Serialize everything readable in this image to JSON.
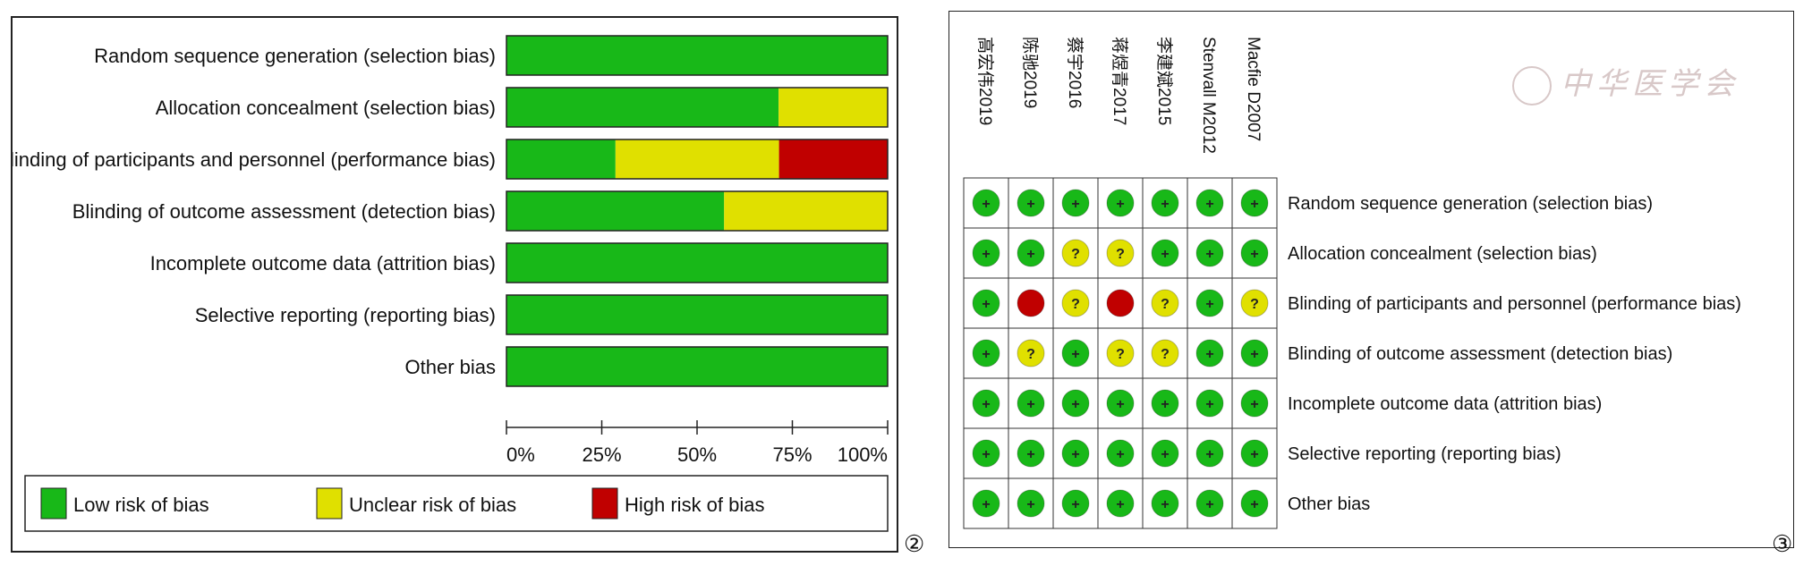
{
  "figure_labels": {
    "left": "②",
    "right": "③"
  },
  "watermark": "中华医学会",
  "colors": {
    "low": "#18b818",
    "unclear": "#e0e000",
    "high": "#c00000",
    "border": "#222222"
  },
  "chart_data": [
    {
      "type": "bar",
      "orientation": "horizontal-stacked-percent",
      "categories": [
        "Random sequence generation (selection bias)",
        "Allocation concealment (selection bias)",
        "Blinding of participants and personnel (performance bias)",
        "Blinding of outcome assessment (detection bias)",
        "Incomplete outcome data (attrition bias)",
        "Selective reporting (reporting bias)",
        "Other bias"
      ],
      "series": [
        {
          "name": "Low risk of bias",
          "values": [
            100,
            71.4,
            28.6,
            57.1,
            100,
            100,
            100
          ]
        },
        {
          "name": "Unclear risk of bias",
          "values": [
            0,
            28.6,
            42.9,
            42.9,
            0,
            0,
            0
          ]
        },
        {
          "name": "High risk of bias",
          "values": [
            0,
            0,
            28.6,
            0,
            0,
            0,
            0
          ]
        }
      ],
      "xlim": [
        0,
        100
      ],
      "xticks": [
        "0%",
        "25%",
        "50%",
        "75%",
        "100%"
      ],
      "legend": [
        "Low risk of bias",
        "Unclear risk of bias",
        "High risk of bias"
      ],
      "legend_position": "bottom"
    },
    {
      "type": "table",
      "studies": [
        "高宏伟2019",
        "陈驰2019",
        "蔡宇2016",
        "蒋煜青2017",
        "李建斌2015",
        "Stenvall M2012",
        "Macfie D2007"
      ],
      "domains": [
        "Random sequence generation (selection bias)",
        "Allocation concealment (selection bias)",
        "Blinding of participants and personnel (performance bias)",
        "Blinding of outcome assessment (detection bias)",
        "Incomplete outcome data (attrition bias)",
        "Selective reporting (reporting bias)",
        "Other bias"
      ],
      "symbols": {
        "low": "+",
        "unclear": "?",
        "high": ""
      },
      "grid": [
        [
          "low",
          "low",
          "low",
          "low",
          "low",
          "low",
          "low"
        ],
        [
          "low",
          "low",
          "unclear",
          "unclear",
          "low",
          "low",
          "low"
        ],
        [
          "low",
          "high",
          "unclear",
          "high",
          "unclear",
          "low",
          "unclear"
        ],
        [
          "low",
          "unclear",
          "low",
          "unclear",
          "unclear",
          "low",
          "low"
        ],
        [
          "low",
          "low",
          "low",
          "low",
          "low",
          "low",
          "low"
        ],
        [
          "low",
          "low",
          "low",
          "low",
          "low",
          "low",
          "low"
        ],
        [
          "low",
          "low",
          "low",
          "low",
          "low",
          "low",
          "low"
        ]
      ]
    }
  ]
}
